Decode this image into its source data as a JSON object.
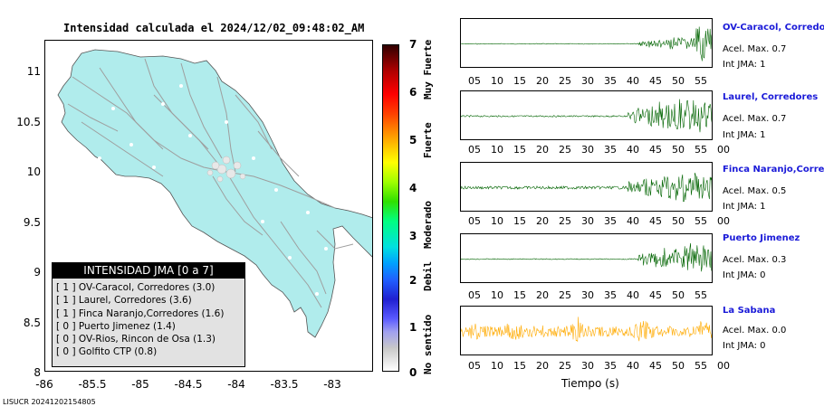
{
  "map": {
    "title": "Intensidad calculada el 2024/12/02_09:48:02_AM",
    "y_ticks": [
      "11",
      "10.5",
      "10",
      "9.5",
      "9",
      "8.5",
      "8"
    ],
    "x_ticks": [
      "-86",
      "-85.5",
      "-85",
      "-84.5",
      "-84",
      "-83.5",
      "-83"
    ],
    "land_color": "#b0ecec",
    "road_color": "#9e9e9e"
  },
  "legend": {
    "title": "INTENSIDAD JMA [0 a 7]",
    "items": [
      "[ 1 ]  OV-Caracol, Corredores (3.0)",
      "[ 1 ]  Laurel, Corredores (3.6)",
      "[ 1 ]  Finca Naranjo,Corredores (1.6)",
      "[ 0 ]  Puerto Jimenez (1.4)",
      "[ 0 ]  OV-Rios, Rincon de Osa (1.3)",
      "[ 0 ]  Golfito CTP (0.8)"
    ]
  },
  "colorbar": {
    "ticks": [
      "7",
      "6",
      "5",
      "4",
      "3",
      "2",
      "1",
      "0"
    ],
    "categories": [
      "Muy Fuerte",
      "Fuerte",
      "Moderado",
      "Debil",
      "No sentido"
    ]
  },
  "stations": [
    {
      "name": "OV-Caracol, Corredores",
      "accel": "Acel. Max. 0.7",
      "jma": "Int JMA: 1",
      "color": "#006400",
      "axis": [
        "05",
        "10",
        "15",
        "20",
        "25",
        "30",
        "35",
        "40",
        "45",
        "50",
        "55"
      ]
    },
    {
      "name": "Laurel, Corredores",
      "accel": "Acel. Max. 0.7",
      "jma": "Int JMA: 1",
      "color": "#006400",
      "axis": [
        "05",
        "10",
        "15",
        "20",
        "25",
        "30",
        "35",
        "40",
        "45",
        "50",
        "55",
        "00"
      ]
    },
    {
      "name": "Finca Naranjo,Corredores",
      "accel": "Acel. Max. 0.5",
      "jma": "Int JMA: 1",
      "color": "#006400",
      "axis": [
        "05",
        "10",
        "15",
        "20",
        "25",
        "30",
        "35",
        "40",
        "45",
        "50",
        "55",
        "00"
      ]
    },
    {
      "name": "Puerto Jimenez",
      "accel": "Acel. Max. 0.3",
      "jma": "Int JMA: 0",
      "color": "#006400",
      "axis": [
        "05",
        "10",
        "15",
        "20",
        "25",
        "30",
        "35",
        "40",
        "45",
        "50",
        "55"
      ]
    },
    {
      "name": "La Sabana",
      "accel": "Acel. Max. 0.0",
      "jma": "Int JMA: 0",
      "color": "#ffaa00",
      "axis": [
        "05",
        "10",
        "15",
        "20",
        "25",
        "30",
        "35",
        "40",
        "45",
        "50",
        "55",
        "00"
      ]
    }
  ],
  "time_label": "Tiempo (s)",
  "footer": "LISUCR 20241202154805"
}
